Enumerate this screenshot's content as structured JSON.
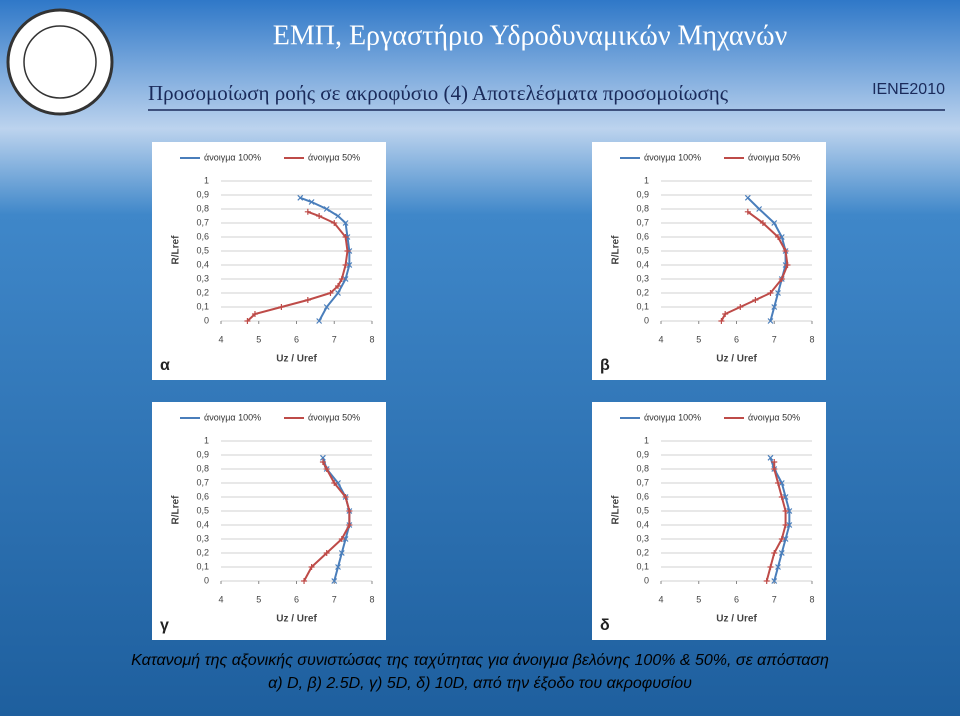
{
  "header": {
    "title": "ΕΜΠ, Εργαστήριο Υδροδυναμικών Μηχανών",
    "subtitle": "Προσομοίωση ροής σε ακροφύσιο (4)  Αποτελέσματα προσομοίωσης",
    "badge": "IENE2010"
  },
  "chart_data": [
    {
      "type": "line",
      "panel": "α",
      "x_label": "Uz / Uref",
      "y_label": "R/Lref",
      "xlim": [
        4,
        8
      ],
      "xticks": [
        4,
        5,
        6,
        7,
        8
      ],
      "ylim": [
        0,
        1
      ],
      "yticks": [
        0,
        {
          "value": 0.1,
          "label": "0,1"
        },
        {
          "value": 0.2,
          "label": "0,2"
        },
        {
          "value": 0.3,
          "label": "0,3"
        },
        {
          "value": 0.4,
          "label": "0,4"
        },
        {
          "value": 0.5,
          "label": "0,5"
        },
        {
          "value": 0.6,
          "label": "0,6"
        },
        {
          "value": 0.7,
          "label": "0,7"
        },
        {
          "value": 0.8,
          "label": "0,8"
        },
        {
          "value": 0.9,
          "label": "0,9"
        },
        1
      ],
      "grid": true,
      "series": [
        {
          "name": "άνοιγμα 100%",
          "color": "#4a7ebb",
          "marker": "x",
          "x": [
            6.6,
            6.8,
            7.1,
            7.3,
            7.4,
            7.4,
            7.35,
            7.3,
            7.1,
            6.8,
            6.4,
            6.1
          ],
          "y": [
            0,
            0.1,
            0.2,
            0.3,
            0.4,
            0.5,
            0.6,
            0.7,
            0.75,
            0.8,
            0.85,
            0.88
          ]
        },
        {
          "name": "άνοιγμα 50%",
          "color": "#be4b48",
          "marker": "+",
          "x": [
            4.7,
            4.9,
            5.6,
            6.3,
            6.9,
            7.1,
            7.2,
            7.3,
            7.35,
            7.3,
            7.0,
            6.6,
            6.3
          ],
          "y": [
            0,
            0.05,
            0.1,
            0.15,
            0.2,
            0.25,
            0.3,
            0.4,
            0.5,
            0.6,
            0.7,
            0.75,
            0.78
          ]
        }
      ]
    },
    {
      "type": "line",
      "panel": "β",
      "x_label": "Uz / Uref",
      "y_label": "R/Lref",
      "xlim": [
        4,
        8
      ],
      "xticks": [
        4,
        5,
        6,
        7,
        8
      ],
      "ylim": [
        0,
        1
      ],
      "yticks": [
        0,
        {
          "value": 0.1,
          "label": "0,1"
        },
        {
          "value": 0.2,
          "label": "0,2"
        },
        {
          "value": 0.3,
          "label": "0,3"
        },
        {
          "value": 0.4,
          "label": "0,4"
        },
        {
          "value": 0.5,
          "label": "0,5"
        },
        {
          "value": 0.6,
          "label": "0,6"
        },
        {
          "value": 0.7,
          "label": "0,7"
        },
        {
          "value": 0.8,
          "label": "0,8"
        },
        {
          "value": 0.9,
          "label": "0,9"
        },
        1
      ],
      "grid": true,
      "series": [
        {
          "name": "άνοιγμα 100%",
          "color": "#4a7ebb",
          "marker": "x",
          "x": [
            6.9,
            7.0,
            7.1,
            7.2,
            7.3,
            7.3,
            7.2,
            7.0,
            6.6,
            6.3
          ],
          "y": [
            0,
            0.1,
            0.2,
            0.3,
            0.4,
            0.5,
            0.6,
            0.7,
            0.8,
            0.88
          ]
        },
        {
          "name": "άνοιγμα 50%",
          "color": "#be4b48",
          "marker": "+",
          "x": [
            5.6,
            5.7,
            6.1,
            6.5,
            6.9,
            7.2,
            7.35,
            7.3,
            7.1,
            6.7,
            6.3
          ],
          "y": [
            0,
            0.05,
            0.1,
            0.15,
            0.2,
            0.3,
            0.4,
            0.5,
            0.6,
            0.7,
            0.78
          ]
        }
      ]
    },
    {
      "type": "line",
      "panel": "γ",
      "x_label": "Uz / Uref",
      "y_label": "R/Lref",
      "xlim": [
        4,
        8
      ],
      "xticks": [
        4,
        5,
        6,
        7,
        8
      ],
      "ylim": [
        0,
        1
      ],
      "yticks": [
        0,
        {
          "value": 0.1,
          "label": "0,1"
        },
        {
          "value": 0.2,
          "label": "0,2"
        },
        {
          "value": 0.3,
          "label": "0,3"
        },
        {
          "value": 0.4,
          "label": "0,4"
        },
        {
          "value": 0.5,
          "label": "0,5"
        },
        {
          "value": 0.6,
          "label": "0,6"
        },
        {
          "value": 0.7,
          "label": "0,7"
        },
        {
          "value": 0.8,
          "label": "0,8"
        },
        {
          "value": 0.9,
          "label": "0,9"
        },
        1
      ],
      "grid": true,
      "series": [
        {
          "name": "άνοιγμα 100%",
          "color": "#4a7ebb",
          "marker": "x",
          "x": [
            7.0,
            7.1,
            7.2,
            7.3,
            7.4,
            7.4,
            7.3,
            7.1,
            6.8,
            6.7
          ],
          "y": [
            0,
            0.1,
            0.2,
            0.3,
            0.4,
            0.5,
            0.6,
            0.7,
            0.8,
            0.88
          ]
        },
        {
          "name": "άνοιγμα 50%",
          "color": "#be4b48",
          "marker": "+",
          "x": [
            6.2,
            6.4,
            6.8,
            7.2,
            7.4,
            7.4,
            7.3,
            7.0,
            6.8,
            6.7
          ],
          "y": [
            0,
            0.1,
            0.2,
            0.3,
            0.4,
            0.5,
            0.6,
            0.7,
            0.8,
            0.85
          ]
        }
      ]
    },
    {
      "type": "line",
      "panel": "δ",
      "x_label": "Uz / Uref",
      "y_label": "R/Lref",
      "xlim": [
        4,
        8
      ],
      "xticks": [
        4,
        5,
        6,
        7,
        8
      ],
      "ylim": [
        0,
        1
      ],
      "yticks": [
        0,
        {
          "value": 0.1,
          "label": "0,1"
        },
        {
          "value": 0.2,
          "label": "0,2"
        },
        {
          "value": 0.3,
          "label": "0,3"
        },
        {
          "value": 0.4,
          "label": "0,4"
        },
        {
          "value": 0.5,
          "label": "0,5"
        },
        {
          "value": 0.6,
          "label": "0,6"
        },
        {
          "value": 0.7,
          "label": "0,7"
        },
        {
          "value": 0.8,
          "label": "0,8"
        },
        {
          "value": 0.9,
          "label": "0,9"
        },
        1
      ],
      "grid": true,
      "series": [
        {
          "name": "άνοιγμα 100%",
          "color": "#4a7ebb",
          "marker": "x",
          "x": [
            7.0,
            7.1,
            7.2,
            7.3,
            7.4,
            7.4,
            7.3,
            7.2,
            7.0,
            6.9
          ],
          "y": [
            0,
            0.1,
            0.2,
            0.3,
            0.4,
            0.5,
            0.6,
            0.7,
            0.8,
            0.88
          ]
        },
        {
          "name": "άνοιγμα 50%",
          "color": "#be4b48",
          "marker": "+",
          "x": [
            6.8,
            6.9,
            7.0,
            7.2,
            7.3,
            7.3,
            7.2,
            7.1,
            7.0,
            7.0
          ],
          "y": [
            0,
            0.1,
            0.2,
            0.3,
            0.4,
            0.5,
            0.6,
            0.7,
            0.8,
            0.85
          ]
        }
      ]
    }
  ],
  "caption": [
    "Κατανομή της αξονικής συνιστώσας της ταχύτητας για άνοιγμα βελόνης 100% & 50%, σε απόσταση",
    "α) D, β) 2.5D, γ) 5D, δ) 10D, από την έξοδο του ακροφυσίου"
  ]
}
